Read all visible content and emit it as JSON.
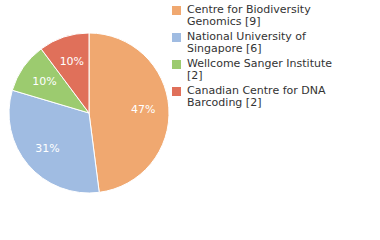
{
  "chart_data": {
    "type": "pie",
    "categories": [
      "Centre for Biodiversity Genomics [9]",
      "National University of Singapore [6]",
      "Wellcome Sanger Institute [2]",
      "Canadian Centre for DNA Barcoding [2]"
    ],
    "values": [
      47,
      31,
      10,
      10
    ],
    "value_labels": [
      "47%",
      "31%",
      "10%",
      "10%"
    ],
    "colors": [
      "#f0a870",
      "#a0bce2",
      "#9ccb6f",
      "#e0705a"
    ],
    "data_labels": true,
    "legend": "right"
  }
}
